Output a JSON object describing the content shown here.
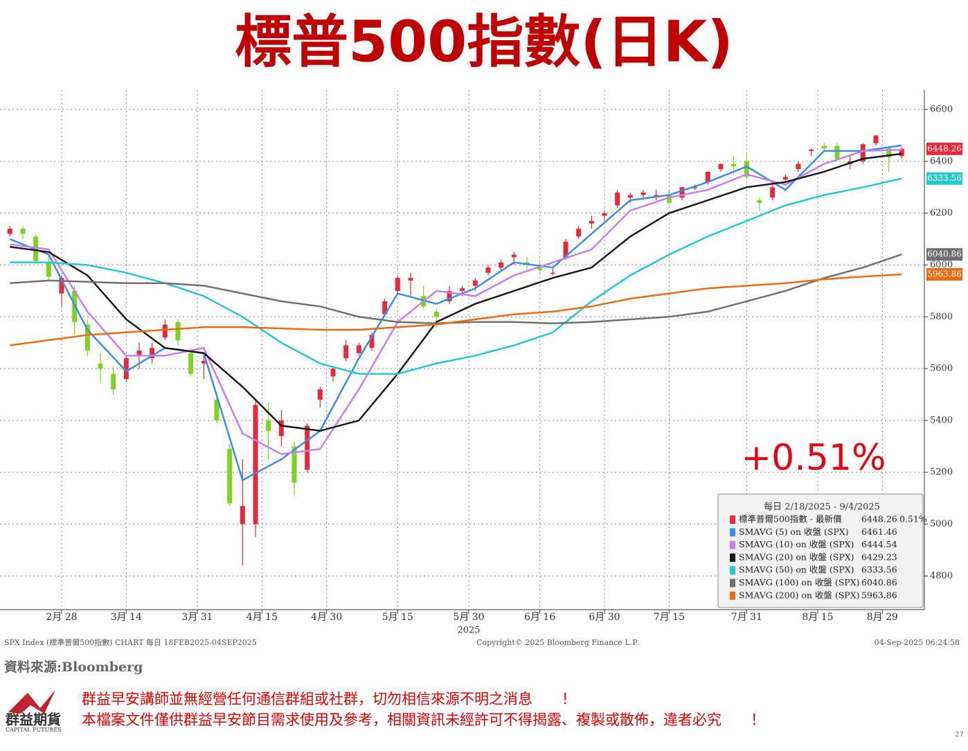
{
  "chart_data": {
    "type": "candlestick",
    "title": "標普500指數(日K)",
    "annotation": "+0.51%",
    "year_label": "2025",
    "footer_left": "SPX Index (標準普爾500指數) CHART  每日  18FEB2025-04SEP2025",
    "copyright": "Copyright© 2025 Bloomberg Finance L.P.",
    "timestamp": "04-Sep-2025 06:24:58",
    "xlim": [
      -1,
      141.5
    ],
    "xticks": [
      {
        "value": 8,
        "label": "2月 28"
      },
      {
        "value": 18,
        "label": "3月 14"
      },
      {
        "value": 29,
        "label": "3月 31"
      },
      {
        "value": 39,
        "label": "4月 15"
      },
      {
        "value": 49,
        "label": "4月 30"
      },
      {
        "value": 60,
        "label": "5月 15"
      },
      {
        "value": 71,
        "label": "5月 30"
      },
      {
        "value": 82,
        "label": "6月 16"
      },
      {
        "value": 92,
        "label": "6月 30"
      },
      {
        "value": 102,
        "label": "7月 15"
      },
      {
        "value": 114,
        "label": "7月 31"
      },
      {
        "value": 125,
        "label": "8月 15"
      },
      {
        "value": 135,
        "label": "8月 29"
      }
    ],
    "ylim": [
      4670,
      6675
    ],
    "yticks": [
      4800,
      5000,
      5200,
      5400,
      5600,
      5800,
      6000,
      6200,
      6400,
      6600
    ],
    "grid": true,
    "legend": {
      "title": "每日 2/18/2025 - 9/4/2025",
      "position": "lower right"
    },
    "candles": {
      "name": "標準普爾500指數 - 最新價",
      "change_label": "0.51%",
      "up_color": "#e8283c",
      "down_color": "#7ed321",
      "color": "#e8283c",
      "x": [
        0,
        2,
        4,
        6,
        8,
        10,
        12,
        14,
        16,
        18,
        20,
        22,
        24,
        26,
        28,
        30,
        32,
        34,
        36,
        38,
        40,
        42,
        44,
        46,
        48,
        50,
        52,
        54,
        56,
        58,
        60,
        62,
        64,
        66,
        68,
        70,
        72,
        74,
        76,
        78,
        80,
        82,
        84,
        86,
        88,
        90,
        92,
        94,
        96,
        98,
        100,
        102,
        104,
        106,
        108,
        110,
        112,
        114,
        116,
        118,
        120,
        122,
        124,
        126,
        128,
        130,
        132,
        134,
        136,
        138
      ],
      "ohlc": [
        [
          6120,
          6150,
          6110,
          6140
        ],
        [
          6140,
          6150,
          6100,
          6120
        ],
        [
          6110,
          6120,
          6010,
          6015
        ],
        [
          6010,
          6040,
          5940,
          5955
        ],
        [
          5890,
          5960,
          5840,
          5950
        ],
        [
          5900,
          5920,
          5730,
          5780
        ],
        [
          5770,
          5790,
          5650,
          5670
        ],
        [
          5620,
          5660,
          5550,
          5600
        ],
        [
          5580,
          5610,
          5500,
          5520
        ],
        [
          5560,
          5650,
          5550,
          5640
        ],
        [
          5650,
          5700,
          5600,
          5670
        ],
        [
          5640,
          5700,
          5620,
          5680
        ],
        [
          5720,
          5790,
          5710,
          5770
        ],
        [
          5780,
          5790,
          5690,
          5710
        ],
        [
          5660,
          5680,
          5570,
          5580
        ],
        [
          5620,
          5660,
          5560,
          5630
        ],
        [
          5480,
          5500,
          5390,
          5400
        ],
        [
          5290,
          5310,
          5070,
          5080
        ],
        [
          5000,
          5250,
          4840,
          5070
        ],
        [
          5000,
          5480,
          4950,
          5460
        ],
        [
          5400,
          5470,
          5250,
          5360
        ],
        [
          5340,
          5440,
          5300,
          5400
        ],
        [
          5300,
          5320,
          5110,
          5160
        ],
        [
          5210,
          5390,
          5200,
          5380
        ],
        [
          5480,
          5530,
          5450,
          5520
        ],
        [
          5570,
          5610,
          5550,
          5600
        ],
        [
          5640,
          5710,
          5630,
          5690
        ],
        [
          5660,
          5700,
          5650,
          5690
        ],
        [
          5680,
          5740,
          5670,
          5730
        ],
        [
          5810,
          5870,
          5800,
          5860
        ],
        [
          5900,
          5960,
          5890,
          5950
        ],
        [
          5940,
          5970,
          5880,
          5950
        ],
        [
          5880,
          5920,
          5830,
          5840
        ],
        [
          5820,
          5830,
          5760,
          5800
        ],
        [
          5860,
          5920,
          5850,
          5900
        ],
        [
          5900,
          5920,
          5880,
          5910
        ],
        [
          5920,
          5950,
          5900,
          5940
        ],
        [
          5970,
          6000,
          5960,
          5990
        ],
        [
          5990,
          6020,
          5980,
          6010
        ],
        [
          6030,
          6050,
          6000,
          6040
        ],
        [
          6010,
          6030,
          5980,
          6000
        ],
        [
          5990,
          6010,
          5970,
          5980
        ],
        [
          5970,
          5990,
          5960,
          5970
        ],
        [
          6030,
          6100,
          6020,
          6090
        ],
        [
          6110,
          6150,
          6100,
          6140
        ],
        [
          6160,
          6190,
          6140,
          6170
        ],
        [
          6190,
          6210,
          6170,
          6200
        ],
        [
          6230,
          6290,
          6220,
          6280
        ],
        [
          6260,
          6280,
          6240,
          6270
        ],
        [
          6270,
          6290,
          6250,
          6280
        ],
        [
          6270,
          6290,
          6250,
          6270
        ],
        [
          6270,
          6290,
          6230,
          6240
        ],
        [
          6260,
          6300,
          6250,
          6300
        ],
        [
          6300,
          6310,
          6290,
          6300
        ],
        [
          6320,
          6360,
          6310,
          6360
        ],
        [
          6370,
          6390,
          6360,
          6390
        ],
        [
          6390,
          6420,
          6350,
          6380
        ],
        [
          6400,
          6430,
          6330,
          6340
        ],
        [
          6250,
          6260,
          6210,
          6240
        ],
        [
          6260,
          6310,
          6250,
          6300
        ],
        [
          6330,
          6350,
          6320,
          6340
        ],
        [
          6370,
          6400,
          6360,
          6390
        ],
        [
          6440,
          6450,
          6420,
          6445
        ],
        [
          6460,
          6470,
          6440,
          6450
        ],
        [
          6460,
          6470,
          6400,
          6410
        ],
        [
          6390,
          6420,
          6370,
          6400
        ],
        [
          6400,
          6470,
          6390,
          6466
        ],
        [
          6470,
          6500,
          6460,
          6500
        ],
        [
          6450,
          6460,
          6360,
          6415
        ],
        [
          6420,
          6455,
          6410,
          6448.26
        ]
      ]
    },
    "series": [
      {
        "name": "SMAVG (5)  on 收盤 (SPX)",
        "color": "#3a8fe0",
        "tag": false,
        "x": [
          0,
          6,
          12,
          18,
          24,
          30,
          36,
          42,
          48,
          54,
          60,
          66,
          72,
          78,
          84,
          90,
          96,
          102,
          108,
          114,
          120,
          126,
          132,
          138
        ],
        "values": [
          6100,
          6040,
          5750,
          5590,
          5680,
          5660,
          5170,
          5250,
          5360,
          5640,
          5890,
          5850,
          5910,
          6010,
          5990,
          6120,
          6250,
          6270,
          6320,
          6380,
          6290,
          6440,
          6440,
          6461.46
        ]
      },
      {
        "name": "SMAVG (10)  on 收盤 (SPX)",
        "color": "#c77ff0",
        "tag": false,
        "x": [
          0,
          6,
          12,
          18,
          24,
          30,
          36,
          42,
          48,
          54,
          60,
          66,
          72,
          78,
          84,
          90,
          96,
          102,
          108,
          114,
          120,
          126,
          132,
          138
        ],
        "values": [
          6080,
          6060,
          5820,
          5650,
          5650,
          5680,
          5350,
          5270,
          5290,
          5520,
          5780,
          5900,
          5880,
          5960,
          6010,
          6060,
          6210,
          6260,
          6290,
          6350,
          6310,
          6390,
          6440,
          6444.54
        ]
      },
      {
        "name": "SMAVG (20)  on 收盤 (SPX)",
        "color": "#1a1a1a",
        "tag": false,
        "x": [
          0,
          6,
          12,
          18,
          24,
          30,
          36,
          42,
          48,
          54,
          60,
          66,
          72,
          78,
          84,
          90,
          96,
          102,
          108,
          114,
          120,
          126,
          132,
          138
        ],
        "values": [
          6070,
          6050,
          5960,
          5790,
          5680,
          5660,
          5530,
          5380,
          5360,
          5400,
          5580,
          5780,
          5850,
          5900,
          5950,
          5990,
          6110,
          6200,
          6250,
          6300,
          6320,
          6360,
          6410,
          6429.23
        ]
      },
      {
        "name": "SMAVG (50)  on 收盤 (SPX)",
        "color": "#22c9cf",
        "tag": true,
        "x": [
          0,
          6,
          12,
          18,
          24,
          30,
          36,
          42,
          48,
          54,
          60,
          66,
          72,
          78,
          84,
          90,
          96,
          102,
          108,
          114,
          120,
          126,
          132,
          138
        ],
        "values": [
          6010,
          6010,
          6000,
          5970,
          5930,
          5880,
          5800,
          5700,
          5620,
          5580,
          5580,
          5620,
          5650,
          5690,
          5740,
          5860,
          5960,
          6040,
          6110,
          6170,
          6230,
          6270,
          6300,
          6333.56
        ]
      },
      {
        "name": "SMAVG (100)  on 收盤 (SPX)",
        "color": "#707070",
        "tag": true,
        "x": [
          0,
          6,
          12,
          18,
          24,
          30,
          36,
          42,
          48,
          54,
          60,
          66,
          72,
          78,
          84,
          90,
          96,
          102,
          108,
          114,
          120,
          126,
          132,
          138
        ],
        "values": [
          5930,
          5940,
          5935,
          5930,
          5930,
          5920,
          5890,
          5860,
          5840,
          5800,
          5780,
          5775,
          5780,
          5780,
          5775,
          5780,
          5790,
          5800,
          5820,
          5860,
          5900,
          5950,
          5990,
          6040.86
        ]
      },
      {
        "name": "SMAVG (200)  on 收盤 (SPX)",
        "color": "#ee6a12",
        "tag": true,
        "x": [
          0,
          6,
          12,
          18,
          24,
          30,
          36,
          42,
          48,
          54,
          60,
          66,
          72,
          78,
          84,
          90,
          96,
          102,
          108,
          114,
          120,
          126,
          132,
          138
        ],
        "values": [
          5690,
          5710,
          5730,
          5740,
          5750,
          5760,
          5760,
          5755,
          5750,
          5750,
          5760,
          5770,
          5790,
          5810,
          5820,
          5840,
          5870,
          5890,
          5910,
          5920,
          5930,
          5945,
          5955,
          5963.86
        ]
      }
    ]
  },
  "page": {
    "source": "資料來源:Bloomberg",
    "notice_1": "群益早安講師並無經營任何通信群組或社群，切勿相信來源不明之消息　　！",
    "notice_2": "本檔案文件僅供群益早安節目需求使用及參考，相關資訊未經許可不得揭露、複製或散佈，違者必究　　！",
    "logo_name": "群益期貨",
    "logo_en": "CAPITAL FUTURES",
    "page_number": "27"
  }
}
